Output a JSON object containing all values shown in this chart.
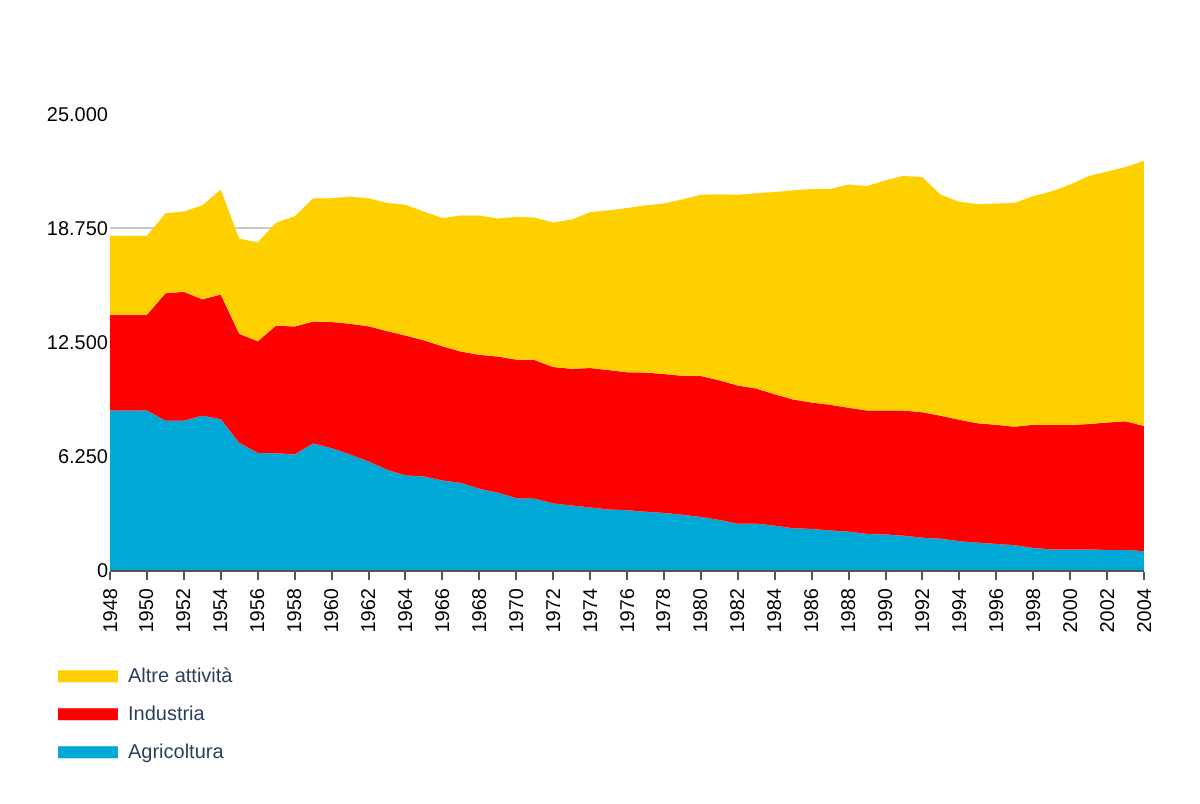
{
  "chart_data": {
    "type": "area",
    "stacked": true,
    "x": [
      1948,
      1949,
      1950,
      1951,
      1952,
      1953,
      1954,
      1955,
      1956,
      1957,
      1958,
      1959,
      1960,
      1961,
      1962,
      1963,
      1964,
      1965,
      1966,
      1967,
      1968,
      1969,
      1970,
      1971,
      1972,
      1973,
      1974,
      1975,
      1976,
      1977,
      1978,
      1979,
      1980,
      1981,
      1982,
      1983,
      1984,
      1985,
      1986,
      1987,
      1988,
      1989,
      1990,
      1991,
      1992,
      1993,
      1994,
      1995,
      1996,
      1997,
      1998,
      1999,
      2000,
      2001,
      2002,
      2003,
      2004
    ],
    "series": [
      {
        "name": "Agricoltura",
        "color": "#00a8d6",
        "values": [
          8750,
          8750,
          8750,
          8180,
          8180,
          8460,
          8270,
          6960,
          6420,
          6400,
          6330,
          6930,
          6680,
          6330,
          5950,
          5500,
          5180,
          5120,
          4900,
          4770,
          4450,
          4230,
          3940,
          3910,
          3650,
          3530,
          3430,
          3310,
          3280,
          3190,
          3120,
          3030,
          2900,
          2740,
          2540,
          2540,
          2420,
          2290,
          2250,
          2160,
          2100,
          1980,
          1940,
          1880,
          1770,
          1710,
          1580,
          1490,
          1420,
          1360,
          1200,
          1130,
          1130,
          1130,
          1100,
          1100,
          1030
        ]
      },
      {
        "name": "Industria",
        "color": "#ff0000",
        "values": [
          5250,
          5250,
          5250,
          6990,
          7080,
          6390,
          6830,
          5990,
          6120,
          7010,
          7020,
          6700,
          6920,
          7170,
          7410,
          7600,
          7670,
          7470,
          7370,
          7210,
          7350,
          7470,
          7600,
          7610,
          7480,
          7500,
          7650,
          7660,
          7560,
          7640,
          7630,
          7620,
          7740,
          7660,
          7570,
          7410,
          7220,
          7060,
          6940,
          6900,
          6800,
          6770,
          6810,
          6870,
          6880,
          6750,
          6660,
          6560,
          6540,
          6500,
          6760,
          6820,
          6820,
          6880,
          6980,
          7050,
          6860
        ]
      },
      {
        "name": "Altre attività",
        "color": "#ffd000",
        "values": [
          4320,
          4320,
          4320,
          4390,
          4390,
          5150,
          5760,
          5220,
          5430,
          5640,
          6040,
          6750,
          6780,
          6970,
          7020,
          7030,
          7180,
          7060,
          7030,
          7450,
          7630,
          7570,
          7830,
          7810,
          7920,
          8180,
          8540,
          8750,
          9000,
          9170,
          9350,
          9670,
          9930,
          10200,
          10460,
          10710,
          11090,
          11470,
          11700,
          11830,
          12240,
          12300,
          12620,
          12870,
          12880,
          12110,
          11950,
          12010,
          12130,
          12270,
          12540,
          12810,
          13190,
          13590,
          13770,
          13940,
          14550
        ]
      }
    ],
    "xlim": [
      1948,
      2004
    ],
    "xticks": [
      1948,
      1950,
      1952,
      1954,
      1956,
      1958,
      1960,
      1962,
      1964,
      1966,
      1968,
      1970,
      1972,
      1974,
      1976,
      1978,
      1980,
      1982,
      1984,
      1986,
      1988,
      1990,
      1992,
      1994,
      1996,
      1998,
      2000,
      2002,
      2004
    ],
    "ylim": [
      0,
      25000
    ],
    "yticks": [
      0,
      {
        "value": 6250,
        "label": "6.250"
      },
      {
        "value": 12500,
        "label": "12.500"
      },
      {
        "value": 18750,
        "label": "18.750"
      },
      {
        "value": 25000,
        "label": "25.000"
      }
    ],
    "grid": "y",
    "legend": "bottom left"
  }
}
